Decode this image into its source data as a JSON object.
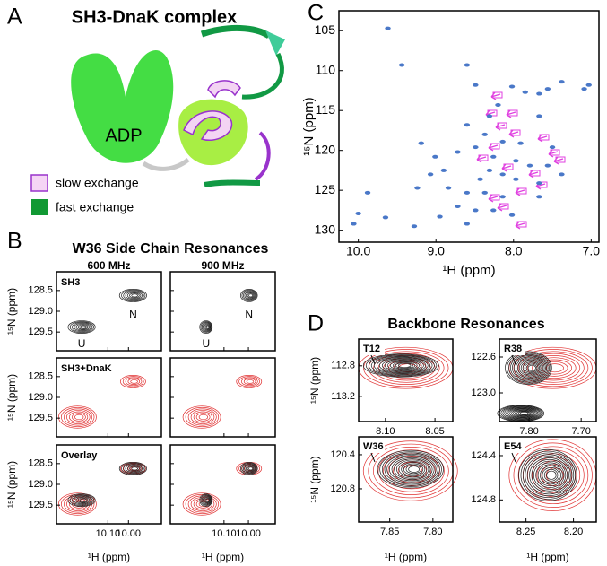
{
  "panel_a": {
    "letter": "A",
    "title": "SH3-DnaK complex",
    "domain_label": "ADP",
    "legend": [
      "slow exchange",
      "fast exchange"
    ]
  },
  "panel_b": {
    "letter": "B",
    "title": "W36 Side Chain Resonances",
    "x_label": "¹H (ppm)",
    "y_label": "¹⁵N (ppm)",
    "ylim": [
      128.05,
      129.95
    ],
    "yticks": [
      128.5,
      {
        "value": 129,
        "label": "129.0"
      },
      129.5
    ],
    "peak_labels": [
      "N",
      "U"
    ],
    "rows": [
      "SH3",
      "SH3+DnaK",
      "Overlay"
    ],
    "columns": [
      {
        "header": "600 MHz",
        "xlim": [
          10.35,
          9.84
        ],
        "xticks": [
          {
            "value": 10.1,
            "label": "10.10"
          },
          {
            "value": 10,
            "label": "10.00"
          }
        ]
      },
      {
        "header": "900 MHz",
        "xlim": [
          10.32,
          9.89
        ],
        "xticks": [
          {
            "value": 10.1,
            "label": "10.10"
          },
          {
            "value": 10,
            "label": "10.00"
          }
        ]
      }
    ]
  },
  "panel_c": {
    "letter": "C",
    "x_label": "¹H (ppm)",
    "y_label": "¹⁵N (ppm)",
    "xlim": [
      10.25,
      6.9
    ],
    "ylim": [
      102.5,
      131.5
    ],
    "xticks": [
      {
        "value": 10,
        "label": "10.0"
      },
      {
        "value": 9,
        "label": "9.0"
      },
      {
        "value": 8,
        "label": "8.0"
      },
      {
        "value": 7,
        "label": "7.0"
      }
    ],
    "yticks": [
      105,
      110,
      115,
      120,
      125,
      130
    ],
    "peak_color": "#4a78c8",
    "peaks": {
      "x": [
        9.62,
        9.44,
        8.6,
        8.49,
        8.02,
        7.85,
        7.67,
        7.56,
        7.38,
        7.09,
        7.03,
        7.67,
        8.2,
        8.31,
        8.6,
        8.37,
        8.14,
        7.91,
        8.49,
        8.72,
        8.26,
        7.97,
        7.79,
        9.19,
        9.07,
        9.24,
        8.84,
        8.6,
        8.37,
        8.14,
        8.72,
        8.49,
        8.26,
        7.97,
        7.67,
        8.02,
        7.67,
        8.9,
        9.01,
        7.5,
        7.56,
        7.38,
        8.95,
        8.6,
        9.88,
        10.0,
        10.06,
        9.65,
        9.28,
        8.31,
        8.14,
        8.43
      ],
      "y": [
        104.7,
        109.3,
        109.3,
        111.8,
        112.0,
        112.7,
        112.9,
        112.3,
        111.4,
        112.3,
        111.8,
        115.7,
        114.3,
        115.7,
        116.8,
        118.0,
        118.9,
        119.1,
        119.6,
        120.2,
        120.8,
        121.3,
        121.9,
        119.1,
        123.0,
        124.7,
        124.7,
        125.3,
        125.3,
        125.8,
        127.0,
        127.5,
        127.5,
        123.6,
        124.1,
        128.1,
        125.8,
        122.5,
        120.8,
        119.6,
        121.9,
        123.0,
        128.3,
        129.2,
        125.3,
        127.9,
        129.2,
        128.4,
        129.5,
        122.5,
        123.0,
        123.6
      ]
    }
  },
  "panel_d": {
    "letter": "D",
    "title": "Backbone Resonances",
    "x_label": "¹H (ppm)",
    "y_label": "¹⁵N (ppm)",
    "subplots": [
      {
        "label": "T12",
        "xlim": [
          8.127,
          8.032
        ],
        "ylim": [
          112.45,
          113.53
        ],
        "xticks": [
          {
            "value": 8.1,
            "label": "8.10"
          },
          8.05
        ],
        "yticks": [
          112.8,
          113.2
        ]
      },
      {
        "label": "R38",
        "xlim": [
          7.857,
          7.671
        ],
        "ylim": [
          122.4,
          123.32
        ],
        "xticks": [
          {
            "value": 7.8,
            "label": "7.80"
          },
          {
            "value": 7.7,
            "label": "7.70"
          }
        ],
        "yticks": [
          122.6,
          {
            "value": 123,
            "label": "123.0"
          }
        ]
      },
      {
        "label": "W36",
        "xlim": [
          7.886,
          7.777
        ],
        "ylim": [
          120.19,
          121.19
        ],
        "xticks": [
          7.85,
          {
            "value": 7.8,
            "label": "7.80"
          }
        ],
        "yticks": [
          120.4,
          120.8
        ]
      },
      {
        "label": "E54",
        "xlim": [
          8.278,
          8.176
        ],
        "ylim": [
          124.23,
          125.0
        ],
        "xticks": [
          8.25,
          {
            "value": 8.2,
            "label": "8.20"
          }
        ],
        "yticks": [
          124.4,
          124.8
        ]
      }
    ]
  }
}
